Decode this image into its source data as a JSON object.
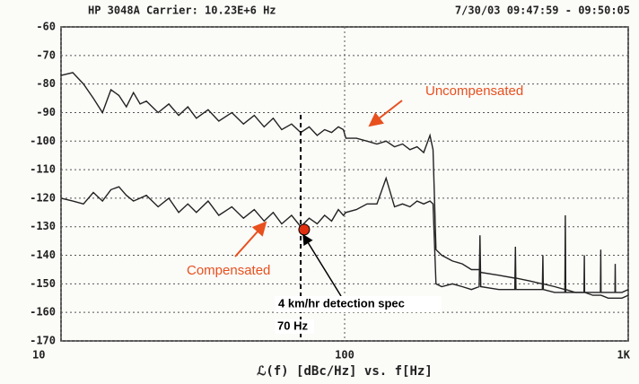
{
  "chart_data": {
    "type": "line",
    "header_left": "HP 3048A  Carrier: 10.23E+6 Hz",
    "header_right": "7/30/03   09:47:59 - 09:50:05",
    "x_label": "ℒ(f) [dBc/Hz] vs. f[Hz]",
    "x_scale": "log",
    "xlim": [
      10,
      1000
    ],
    "xticks": [
      10,
      100,
      {
        "value": 1000,
        "label": "1K"
      }
    ],
    "ylim": [
      -170,
      -60
    ],
    "yticks": [
      -60,
      -70,
      -80,
      -90,
      -100,
      -110,
      -120,
      -130,
      -140,
      -150,
      -160,
      -170
    ],
    "grid": true,
    "x": [
      10,
      11,
      12,
      13,
      14,
      15,
      16,
      17,
      18,
      19,
      20,
      22,
      24,
      26,
      28,
      30,
      33,
      36,
      40,
      44,
      48,
      52,
      56,
      60,
      65,
      70,
      75,
      80,
      85,
      90,
      95,
      99,
      101,
      110,
      120,
      130,
      140,
      150,
      160,
      170,
      180,
      190,
      200,
      205,
      210,
      220,
      240,
      260,
      280,
      298,
      300,
      302,
      350,
      398,
      400,
      402,
      450,
      498,
      500,
      502,
      550,
      598,
      600,
      602,
      650,
      698,
      700,
      702,
      750,
      798,
      800,
      802,
      850,
      898,
      900,
      902,
      950,
      1000
    ],
    "series": [
      {
        "name": "Uncompensated",
        "color": "#222222",
        "values": [
          -77,
          -76,
          -80,
          -85,
          -90,
          -82,
          -84,
          -88,
          -83,
          -87,
          -86,
          -90,
          -87,
          -91,
          -88,
          -92,
          -89,
          -93,
          -90,
          -94,
          -91,
          -95,
          -92,
          -96,
          -94,
          -97,
          -95,
          -98,
          -96,
          -97,
          -95,
          -96,
          -99,
          -99,
          -100,
          -101,
          -100,
          -102,
          -101,
          -103,
          -102,
          -104,
          -98,
          -103,
          -138,
          -140,
          -142,
          -143,
          -145,
          -145,
          -145,
          -146,
          -147,
          -148,
          -148,
          -148,
          -149,
          -150,
          -150,
          -150,
          -151,
          -152,
          -152,
          -152,
          -153,
          -153,
          -153,
          -153,
          -154,
          -154,
          -154,
          -154,
          -155,
          -155,
          -155,
          -155,
          -155,
          -154
        ]
      },
      {
        "name": "Compensated",
        "color": "#222222",
        "values": [
          -120,
          -121,
          -122,
          -118,
          -121,
          -117,
          -116,
          -119,
          -121,
          -120,
          -119,
          -123,
          -120,
          -125,
          -122,
          -125,
          -121,
          -126,
          -123,
          -127,
          -124,
          -128,
          -125,
          -129,
          -126,
          -130,
          -127,
          -129,
          -126,
          -128,
          -124,
          -126,
          -125,
          -124,
          -122,
          -122,
          -113,
          -123,
          -122,
          -123,
          -121,
          -122,
          -121,
          -122,
          -150,
          -151,
          -150,
          -151,
          -152,
          -151,
          -133,
          -151,
          -152,
          -152,
          -137,
          -152,
          -152,
          -152,
          -140,
          -152,
          -153,
          -153,
          -126,
          -153,
          -153,
          -153,
          -140,
          -153,
          -153,
          -153,
          -138,
          -153,
          -153,
          -153,
          -143,
          -153,
          -153,
          -152
        ]
      }
    ],
    "reference_line": {
      "x": 70,
      "label": "70 Hz"
    },
    "spec_point": {
      "x": 72,
      "y": -131,
      "color": "#e03010",
      "label": "4 km/hr detection spec"
    }
  }
}
